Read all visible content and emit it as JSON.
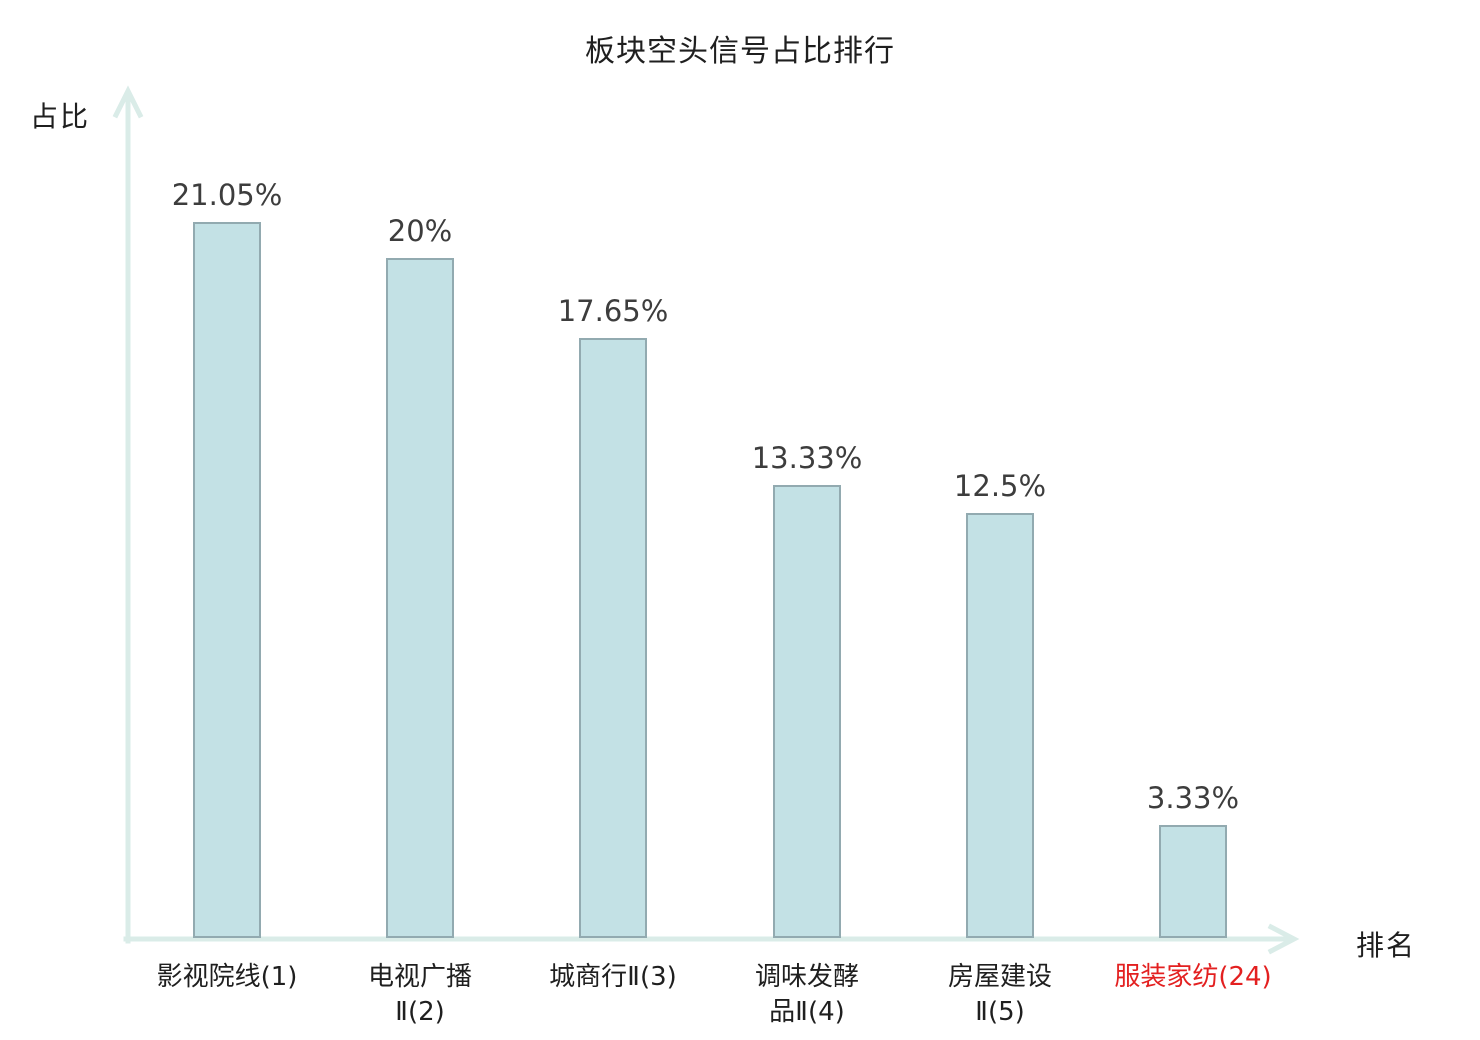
{
  "chart_data": {
    "type": "bar",
    "title": "板块空头信号占比排行",
    "ylabel": "占比",
    "xlabel": "排名",
    "categories": [
      {
        "label": "影视院线(1)",
        "lines": [
          "影视院线(1)"
        ]
      },
      {
        "label": "电视广播Ⅱ(2)",
        "lines": [
          "电视广播",
          "Ⅱ(2)"
        ]
      },
      {
        "label": "城商行Ⅱ(3)",
        "lines": [
          "城商行Ⅱ(3)"
        ]
      },
      {
        "label": "调味发酵品Ⅱ(4)",
        "lines": [
          "调味发酵",
          "品Ⅱ(4)"
        ]
      },
      {
        "label": "房屋建设Ⅱ(5)",
        "lines": [
          "房屋建设",
          "Ⅱ(5)"
        ]
      },
      {
        "label": "服装家纺(24)",
        "lines": [
          "服装家纺(24)"
        ]
      }
    ],
    "values": [
      21.05,
      20,
      17.65,
      13.33,
      12.5,
      3.33
    ],
    "value_labels": [
      "21.05%",
      "20%",
      "17.65%",
      "13.33%",
      "12.5%",
      "3.33%"
    ],
    "highlight_index": 5,
    "ylim": [
      0,
      25
    ],
    "grid": false,
    "legend": null,
    "colors": {
      "bar_fill": "#c3e1e5",
      "bar_border": "#92aab0",
      "axis": "#daece8",
      "text": "#3d3d3d",
      "category_text": "#1f1f1f",
      "highlight_text": "#e32020"
    }
  }
}
